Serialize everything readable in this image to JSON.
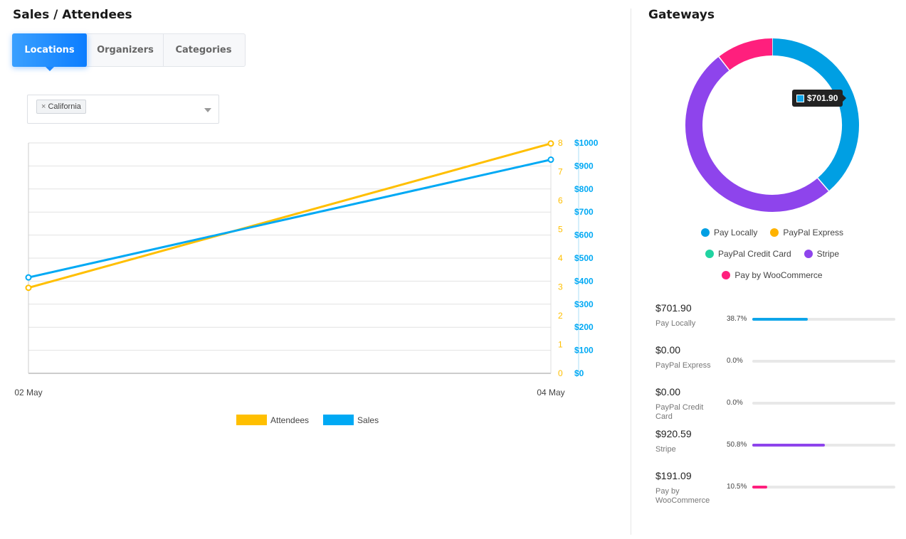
{
  "left": {
    "title": "Sales / Attendees",
    "tabs": [
      "Locations",
      "Organizers",
      "Categories"
    ],
    "filter": {
      "chip_label": "California",
      "chip_remove": "×"
    }
  },
  "chart_data": {
    "type": "line",
    "x": [
      "02 May",
      "04 May"
    ],
    "series": [
      {
        "name": "Attendees",
        "values": [
          2.97,
          7.98
        ],
        "color": "#ffbf00",
        "axis": "left"
      },
      {
        "name": "Sales",
        "values": [
          416.1,
          927.4
        ],
        "color": "#00a9f4",
        "axis": "right"
      }
    ],
    "y_left": {
      "ticks": [
        "0",
        "1",
        "2",
        "3",
        "4",
        "5",
        "6",
        "7",
        "8"
      ],
      "range": [
        0,
        8
      ],
      "color": "#ffbf00"
    },
    "y_right": {
      "ticks": [
        "$0",
        "$100",
        "$200",
        "$300",
        "$400",
        "$500",
        "$600",
        "$700",
        "$800",
        "$900",
        "$1000"
      ],
      "range": [
        0,
        1000
      ],
      "color": "#00a9f4"
    },
    "grid": true,
    "legend": "bottom"
  },
  "right": {
    "title": "Gateways",
    "donut": [
      {
        "name": "Pay Locally",
        "value": 701.9,
        "color": "#009fe3"
      },
      {
        "name": "PayPal Express",
        "value": 0,
        "color": "#ffb300"
      },
      {
        "name": "PayPal Credit Card",
        "value": 0,
        "color": "#21d3a1"
      },
      {
        "name": "Stripe",
        "value": 920.59,
        "color": "#8e44ec"
      },
      {
        "name": "Pay by WooCommerce",
        "value": 191.09,
        "color": "#ff1f7d"
      }
    ],
    "tooltip": "$701.90",
    "legend_rows": [
      [
        "Pay Locally",
        "PayPal Express"
      ],
      [
        "PayPal Credit Card",
        "Stripe"
      ],
      [
        "Pay by WooCommerce"
      ]
    ],
    "list": [
      {
        "amount": "$701.90",
        "name": "Pay Locally",
        "pct": "38.7%",
        "fraction": 0.387,
        "color": "#0ea5e9"
      },
      {
        "amount": "$0.00",
        "name": "PayPal Express",
        "pct": "0.0%",
        "fraction": 0,
        "color": "#ffb300"
      },
      {
        "amount": "$0.00",
        "name": "PayPal Credit Card",
        "pct": "0.0%",
        "fraction": 0,
        "color": "#21d3a1"
      },
      {
        "amount": "$920.59",
        "name": "Stripe",
        "pct": "50.8%",
        "fraction": 0.508,
        "color": "#8e44ec"
      },
      {
        "amount": "$191.09",
        "name": "Pay by WooCommerce",
        "pct": "10.5%",
        "fraction": 0.105,
        "color": "#ff1f7d"
      }
    ]
  }
}
